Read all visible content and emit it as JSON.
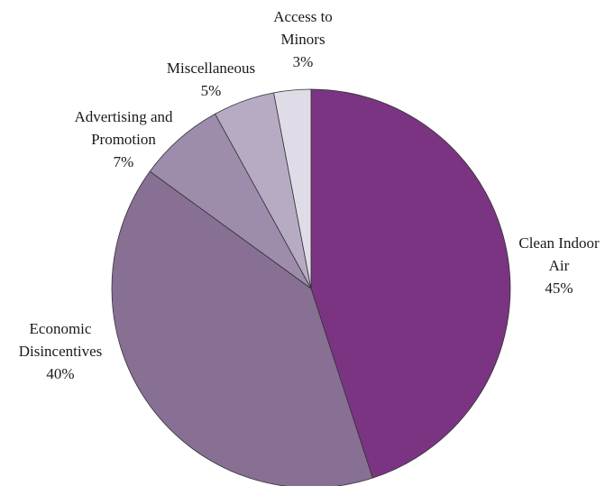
{
  "chart_data": {
    "type": "pie",
    "title": "",
    "start_angle_deg": 0,
    "direction": "clockwise",
    "slices": [
      {
        "label_lines": [
          "Clean Indoor",
          "Air"
        ],
        "value": 45,
        "value_label": "45%",
        "color": "#7a3482"
      },
      {
        "label_lines": [
          "Economic",
          "Disincentives"
        ],
        "value": 40,
        "value_label": "40%",
        "color": "#877093"
      },
      {
        "label_lines": [
          "Advertising and",
          "Promotion"
        ],
        "value": 7,
        "value_label": "7%",
        "color": "#9d8cab"
      },
      {
        "label_lines": [
          "Miscellaneous"
        ],
        "value": 5,
        "value_label": "5%",
        "color": "#b7abc4"
      },
      {
        "label_lines": [
          "Access to",
          "Minors"
        ],
        "value": 3,
        "value_label": "3%",
        "color": "#e0dce7"
      }
    ]
  }
}
